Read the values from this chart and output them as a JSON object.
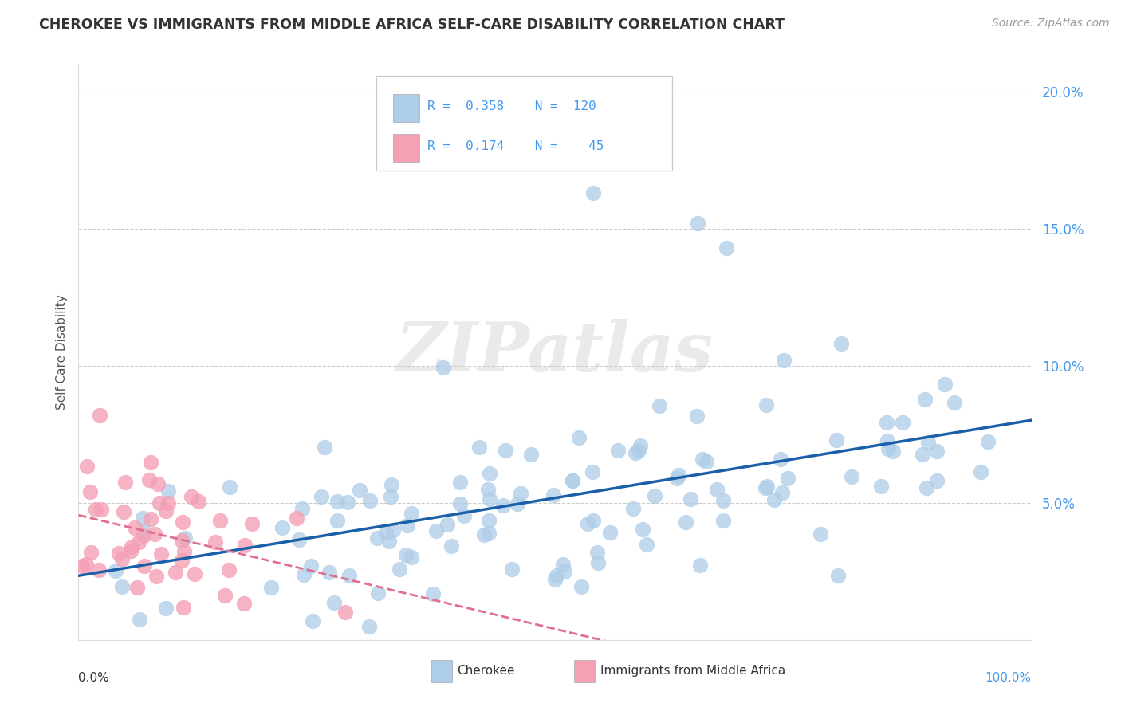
{
  "title": "CHEROKEE VS IMMIGRANTS FROM MIDDLE AFRICA SELF-CARE DISABILITY CORRELATION CHART",
  "source": "Source: ZipAtlas.com",
  "ylabel": "Self-Care Disability",
  "y_ticks": [
    0.0,
    0.05,
    0.1,
    0.15,
    0.2
  ],
  "y_tick_labels": [
    "",
    "5.0%",
    "10.0%",
    "15.0%",
    "20.0%"
  ],
  "xlim": [
    0.0,
    1.0
  ],
  "ylim": [
    0.0,
    0.21
  ],
  "watermark": "ZIPatlas",
  "blue_dot_color": "#aecde8",
  "pink_dot_color": "#f4a0b5",
  "blue_line_color": "#1a5fa8",
  "pink_line_color": "#e07090",
  "background_color": "#ffffff",
  "grid_color": "#cccccc",
  "tick_label_color": "#4499ee",
  "title_color": "#333333",
  "source_color": "#999999"
}
